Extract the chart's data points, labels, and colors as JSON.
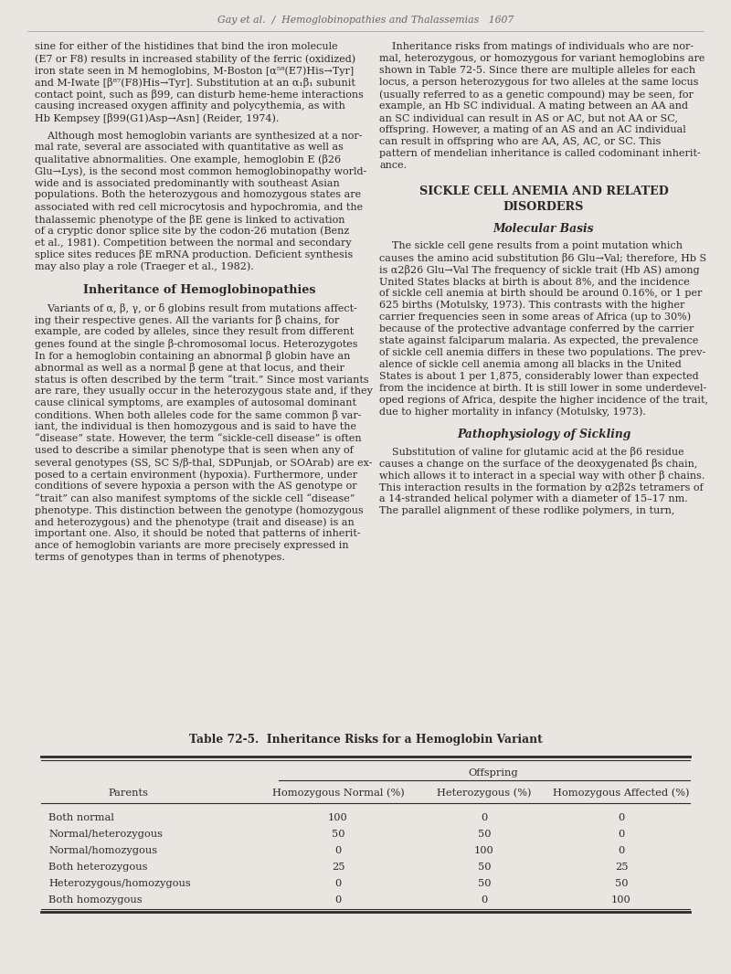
{
  "bg_color": "#e9e5e0",
  "text_color": "#2a2a2a",
  "header": "Gay et al.  /  Hemoglobinopathies and Thalassemias   1607",
  "table_title": "Table 72-5.  Inheritance Risks for a Hemoglobin Variant",
  "table_subheader": "Offspring",
  "table_headers": [
    "Parents",
    "Homozygous Normal (%)",
    "Heterozygous (%)",
    "Homozygous Affected (%)"
  ],
  "table_rows": [
    [
      "Both normal",
      "100",
      "0",
      "0"
    ],
    [
      "Normal/heterozygous",
      "50",
      "50",
      "0"
    ],
    [
      "Normal/homozygous",
      "0",
      "100",
      "0"
    ],
    [
      "Both heterozygous",
      "25",
      "50",
      "25"
    ],
    [
      "Heterozygous/homozygous",
      "0",
      "50",
      "50"
    ],
    [
      "Both homozygous",
      "0",
      "0",
      "100"
    ]
  ],
  "left_paragraphs": [
    {
      "type": "body",
      "lines": [
        "sine for either of the histidines that bind the iron molecule",
        "(E7 or F8) results in increased stability of the ferric (oxidized)",
        "iron state seen in M hemoglobins, M-Boston [α⁵⁸(E7)His→Tyr]",
        "and M-Iwate [β⁸⁷(F8)His→Tyr]. Substitution at an α₁β₁ subunit",
        "contact point, such as β99, can disturb heme-heme interactions",
        "causing increased oxygen affinity and polycythemia, as with",
        "Hb Kempsey [β99(G1)Asp→Asn] (Reider, 1974)."
      ]
    },
    {
      "type": "body",
      "indent": true,
      "lines": [
        "    Although most hemoglobin variants are synthesized at a nor-",
        "mal rate, several are associated with quantitative as well as",
        "qualitative abnormalities. One example, hemoglobin E (β26",
        "Glu→Lys), is the second most common hemoglobinopathy world-",
        "wide and is associated predominantly with southeast Asian",
        "populations. Both the heterozygous and homozygous states are",
        "associated with red cell microcytosis and hypochromia, and the",
        "thalassemic phenotype of the βE gene is linked to activation",
        "of a cryptic donor splice site by the codon-26 mutation (Benz",
        "et al., 1981). Competition between the normal and secondary",
        "splice sites reduces βE mRNA production. Deficient synthesis",
        "may also play a role (Traeger et al., 1982)."
      ]
    },
    {
      "type": "heading",
      "text": "Inheritance of Hemoglobinopathies"
    },
    {
      "type": "body",
      "lines": [
        "    Variants of α, β, γ, or δ globins result from mutations affect-",
        "ing their respective genes. All the variants for β chains, for",
        "example, are coded by alleles, since they result from different",
        "genes found at the single β-chromosomal locus. Heterozygotes",
        "In for a hemoglobin containing an abnormal β globin have an",
        "abnormal as well as a normal β gene at that locus, and their",
        "status is often described by the term “trait.” Since most variants",
        "are rare, they usually occur in the heterozygous state and, if they",
        "cause clinical symptoms, are examples of autosomal dominant",
        "conditions. When both alleles code for the same common β var-",
        "iant, the individual is then homozygous and is said to have the",
        "“disease” state. However, the term “sickle-cell disease” is often",
        "used to describe a similar phenotype that is seen when any of",
        "several genotypes (SS, SC S/β-thal, SDPunjab, or SOArab) are ex-",
        "posed to a certain environment (hypoxia). Furthermore, under",
        "conditions of severe hypoxia a person with the AS genotype or",
        "“trait” can also manifest symptoms of the sickle cell “disease”",
        "phenotype. This distinction between the genotype (homozygous",
        "and heterozygous) and the phenotype (trait and disease) is an",
        "important one. Also, it should be noted that patterns of inherit-",
        "ance of hemoglobin variants are more precisely expressed in",
        "terms of genotypes than in terms of phenotypes."
      ]
    }
  ],
  "right_paragraphs": [
    {
      "type": "body",
      "lines": [
        "    Inheritance risks from matings of individuals who are nor-",
        "mal, heterozygous, or homozygous for variant hemoglobins are",
        "shown in Table 72-5. Since there are multiple alleles for each",
        "locus, a person heterozygous for two alleles at the same locus",
        "(usually referred to as a genetic compound) may be seen, for",
        "example, an Hb SC individual. A mating between an AA and",
        "an SC individual can result in AS or AC, but not AA or SC,",
        "offspring. However, a mating of an AS and an AC individual",
        "can result in offspring who are AA, AS, AC, or SC. This",
        "pattern of mendelian inheritance is called codominant inherit-",
        "ance."
      ]
    },
    {
      "type": "section_heading",
      "line1": "SICKLE CELL ANEMIA AND RELATED",
      "line2": "DISORDERS"
    },
    {
      "type": "subheading",
      "text": "Molecular Basis"
    },
    {
      "type": "body",
      "lines": [
        "    The sickle cell gene results from a point mutation which",
        "causes the amino acid substitution β6 Glu→Val; therefore, Hb S",
        "is α2β26 Glu→Val The frequency of sickle trait (Hb AS) among",
        "United States blacks at birth is about 8%, and the incidence",
        "of sickle cell anemia at birth should be around 0.16%, or 1 per",
        "625 births (Motulsky, 1973). This contrasts with the higher",
        "carrier frequencies seen in some areas of Africa (up to 30%)",
        "because of the protective advantage conferred by the carrier",
        "state against falciparum malaria. As expected, the prevalence",
        "of sickle cell anemia differs in these two populations. The prev-",
        "alence of sickle cell anemia among all blacks in the United",
        "States is about 1 per 1,875, considerably lower than expected",
        "from the incidence at birth. It is still lower in some underdevel-",
        "oped regions of Africa, despite the higher incidence of the trait,",
        "due to higher mortality in infancy (Motulsky, 1973)."
      ]
    },
    {
      "type": "subheading",
      "text": "Pathophysiology of Sickling"
    },
    {
      "type": "body",
      "lines": [
        "    Substitution of valine for glutamic acid at the β6 residue",
        "causes a change on the surface of the deoxygenated βs chain,",
        "which allows it to interact in a special way with other β chains.",
        "This interaction results in the formation by α2β2s tetramers of",
        "a 14-stranded helical polymer with a diameter of 15–17 nm.",
        "The parallel alignment of these rodlike polymers, in turn,"
      ]
    }
  ]
}
